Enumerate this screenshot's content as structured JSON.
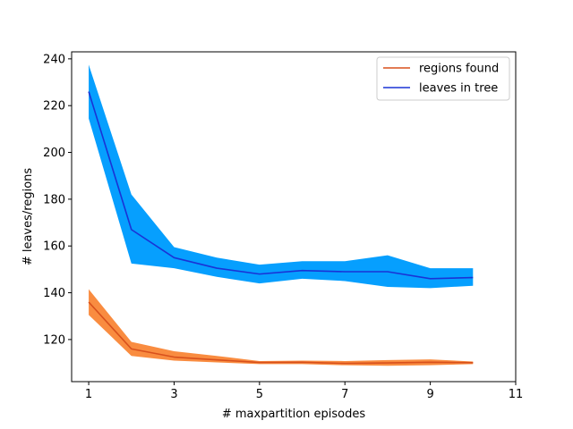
{
  "chart_data": {
    "type": "line",
    "xlabel": "# maxpartition episodes",
    "ylabel": "# leaves/regions",
    "xlim": [
      0.6,
      11
    ],
    "ylim": [
      102,
      243
    ],
    "xticks": [
      1,
      3,
      5,
      7,
      9,
      11
    ],
    "yticks": [
      120,
      140,
      160,
      180,
      200,
      220,
      240
    ],
    "legend_position": "top-right",
    "grid": false,
    "x": [
      1,
      2,
      3,
      4,
      5,
      6,
      7,
      8,
      9,
      10
    ],
    "series": [
      {
        "name": "regions found",
        "color": "#d8501c",
        "fill_color": "#f98c40",
        "values": [
          136,
          116,
          112.5,
          111.3,
          110.2,
          110.3,
          109.8,
          110,
          110.3,
          110.1
        ],
        "lower": [
          130.5,
          113,
          111,
          110.2,
          109.5,
          109.5,
          109,
          108.8,
          109,
          109.5
        ],
        "upper": [
          141.5,
          119,
          115,
          113,
          110.8,
          111,
          110.8,
          111.2,
          111.5,
          110.6
        ]
      },
      {
        "name": "leaves in tree",
        "color": "#1a33d6",
        "fill_color": "#069ffe",
        "values": [
          226,
          167,
          155,
          150.5,
          148,
          149.5,
          149,
          149,
          146,
          146.5
        ],
        "lower": [
          214.5,
          152.5,
          150.5,
          146.8,
          144,
          146,
          145,
          142.5,
          142,
          143
        ],
        "upper": [
          237.5,
          182,
          159.5,
          155,
          152,
          153.5,
          153.5,
          156,
          150.5,
          150.5
        ]
      }
    ]
  }
}
